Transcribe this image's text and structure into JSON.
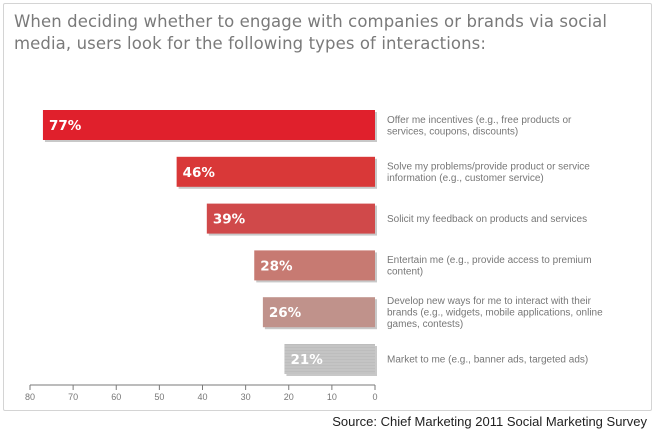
{
  "chart_data": {
    "type": "bar",
    "orientation": "horizontal",
    "title": "When deciding whether to engage with companies or brands via social\nmedia, users look for the following types of interactions:",
    "categories": [
      "Offer me incentives (e.g., free products or\nservices, coupons, discounts)",
      "Solve my problems/provide product or service\ninformation (e.g., customer service)",
      "Solicit my feedback on products and services",
      "Entertain me (e.g., provide access to premium\ncontent)",
      "Develop new ways for me to interact with their\nbrands (e.g., widgets, mobile applications, online\ngames, contests)",
      "Market to me (e.g., banner ads, targeted ads)"
    ],
    "values": [
      77,
      46,
      39,
      28,
      26,
      21
    ],
    "value_labels": [
      "77%",
      "46%",
      "39%",
      "28%",
      "26%",
      "21%"
    ],
    "bar_colors": [
      "#e0202c",
      "#d93838",
      "#d0494a",
      "#c77a72",
      "#c0928b",
      "#bdbdbd"
    ],
    "xlim": [
      80,
      0
    ],
    "x_reversed": true,
    "x_ticks": [
      80,
      70,
      60,
      50,
      40,
      30,
      20,
      10,
      0
    ],
    "x_tick_labels": [
      "80",
      "70",
      "60",
      "50",
      "40",
      "30",
      "20",
      "10",
      "0"
    ],
    "grid": false,
    "legend": "none"
  },
  "source": "Source: Chief Marketing 2011 Social Marketing Survey"
}
